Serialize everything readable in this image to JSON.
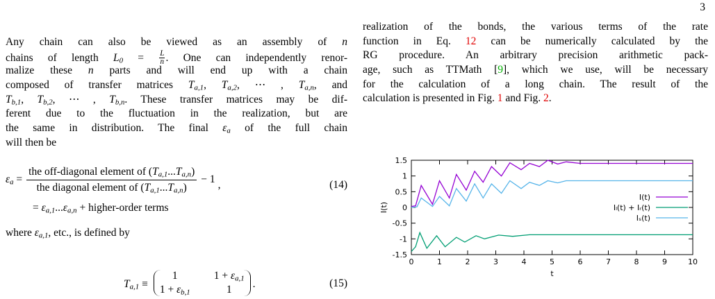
{
  "page_number": "3",
  "left": {
    "para1": [
      [
        "Any chain can also be viewed as an assembly of ",
        {
          "i": "n"
        }
      ],
      [
        "chains of length ",
        {
          "i": "L"
        },
        {
          "sub": "0"
        },
        " = ",
        {
          "frac": [
            "L",
            "n"
          ]
        },
        ". One can independently renor-"
      ],
      [
        "malize these ",
        {
          "i": "n"
        },
        " parts and will end up with a chain"
      ],
      [
        "composed of transfer matrices ",
        {
          "i": "T"
        },
        {
          "sub": "a,1"
        },
        ", ",
        {
          "i": "T"
        },
        {
          "sub": "a,2"
        },
        ", ⋯ , ",
        {
          "i": "T"
        },
        {
          "sub": "a,n"
        },
        ", and"
      ],
      [
        {
          "i": "T"
        },
        {
          "sub": "b,1"
        },
        ", ",
        {
          "i": "T"
        },
        {
          "sub": "b,2"
        },
        ", ⋯ , ",
        {
          "i": "T"
        },
        {
          "sub": "b,n"
        },
        ". These transfer matrices may be dif-"
      ],
      [
        "ferent due to the fluctuation in the realization, but are"
      ],
      [
        "the same in distribution. The final ",
        {
          "i": "ε"
        },
        {
          "sub": "a"
        },
        " of the full chain"
      ],
      [
        "will then be"
      ]
    ],
    "eq14": {
      "lhs": [
        {
          "i": "ε"
        },
        {
          "sub": "a"
        },
        " ="
      ],
      "numerator": [
        "the off-diagonal element of (",
        {
          "i": "T"
        },
        {
          "sub": "a,1"
        },
        "...",
        {
          "i": "T"
        },
        {
          "sub": "a,n"
        },
        ")"
      ],
      "denominator": [
        "the diagonal element of (",
        {
          "i": "T"
        },
        {
          "sub": "a,1"
        },
        "...",
        {
          "i": "T"
        },
        {
          "sub": "a,n"
        },
        ")"
      ],
      "tail": "− 1",
      "comma": ",",
      "number": "(14)",
      "line2": [
        "= ",
        {
          "i": "ε"
        },
        {
          "sub": "a,1"
        },
        "...",
        {
          "i": "ε"
        },
        {
          "sub": "a,n"
        },
        " + higher-order terms"
      ]
    },
    "para2": [
      [
        "where ",
        {
          "i": "ε"
        },
        {
          "sub": "a,1"
        },
        ", etc., is defined by"
      ]
    ],
    "eq15": {
      "lhs": [
        {
          "i": "T"
        },
        {
          "sub": "a,1"
        },
        " ≡"
      ],
      "m11": [
        "1"
      ],
      "m12": [
        "1 + ",
        {
          "i": "ε"
        },
        {
          "sub": "a,1"
        }
      ],
      "m21": [
        "1 + ",
        {
          "i": "ε"
        },
        {
          "sub": "b,1"
        }
      ],
      "m22": [
        "1"
      ],
      "end": ".",
      "number": "(15)"
    }
  },
  "right": {
    "para": [
      [
        "realization of the bonds, the various terms of the rate"
      ],
      [
        "function in Eq. ",
        {
          "link": "12"
        },
        " can be numerically calculated by the"
      ],
      [
        "RG procedure. An arbitrary precision arithmetic pack-"
      ],
      [
        "age, such as TTMath [",
        {
          "cite": "9"
        },
        "], which we use, will be necessary"
      ],
      [
        "for the calculation of a long chain. The result of the"
      ],
      [
        "calculation is presented in Fig. ",
        {
          "link": "1"
        },
        " and Fig. ",
        {
          "link": "2"
        },
        "."
      ]
    ]
  },
  "chart_data": {
    "type": "line",
    "x_label": "t",
    "y_label": "I(t)",
    "xlim": [
      0,
      10
    ],
    "ylim": [
      -1.5,
      1.5
    ],
    "xticks": [
      0,
      1,
      2,
      3,
      4,
      5,
      6,
      7,
      8,
      9,
      10
    ],
    "yticks": [
      1.5,
      1,
      0.5,
      0,
      -0.5,
      -1,
      -1.5
    ],
    "legend_position": "right",
    "series": [
      {
        "name": "I(t)",
        "color": "#9400d3",
        "x": [
          0,
          0.15,
          0.35,
          0.75,
          1.0,
          1.35,
          1.6,
          1.95,
          2.25,
          2.55,
          2.85,
          3.2,
          3.5,
          3.9,
          4.2,
          4.55,
          4.85,
          5.2,
          5.5,
          6,
          7,
          8,
          9,
          10
        ],
        "values": [
          0.03,
          0.05,
          0.7,
          0.1,
          0.85,
          0.3,
          1.05,
          0.55,
          1.15,
          0.8,
          1.3,
          1.0,
          1.42,
          1.2,
          1.4,
          1.3,
          1.5,
          1.38,
          1.45,
          1.4,
          1.4,
          1.4,
          1.4,
          1.4
        ]
      },
      {
        "name": "Iₗ(t) + Iᵣ(t)",
        "color": "#009e73",
        "x": [
          0,
          0.15,
          0.3,
          0.55,
          0.9,
          1.2,
          1.6,
          1.9,
          2.3,
          2.6,
          3.1,
          3.6,
          4.2,
          5,
          6,
          7,
          8,
          9,
          10
        ],
        "values": [
          -1.4,
          -1.25,
          -0.8,
          -1.3,
          -0.9,
          -1.25,
          -0.95,
          -1.1,
          -0.9,
          -1.0,
          -0.88,
          -0.92,
          -0.87,
          -0.87,
          -0.87,
          -0.87,
          -0.87,
          -0.87,
          -0.87
        ]
      },
      {
        "name": "Iₛ(t)",
        "color": "#56b4e9",
        "x": [
          0,
          0.2,
          0.35,
          0.75,
          1.0,
          1.35,
          1.6,
          1.95,
          2.25,
          2.55,
          2.85,
          3.2,
          3.5,
          3.9,
          4.2,
          4.55,
          4.85,
          5.2,
          5.5,
          6,
          7,
          8,
          9,
          10
        ],
        "values": [
          0,
          0.02,
          0.3,
          0.03,
          0.35,
          0.05,
          0.6,
          0.2,
          0.75,
          0.3,
          0.75,
          0.45,
          0.85,
          0.6,
          0.8,
          0.7,
          0.85,
          0.78,
          0.85,
          0.85,
          0.85,
          0.85,
          0.85,
          0.85
        ]
      }
    ]
  }
}
